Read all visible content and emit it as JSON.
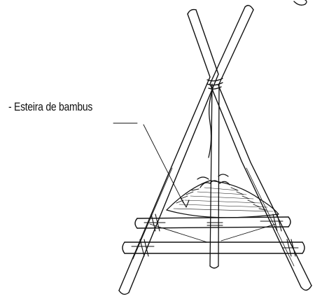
{
  "diagram": {
    "callout_label": "- Esteira de bambus"
  }
}
